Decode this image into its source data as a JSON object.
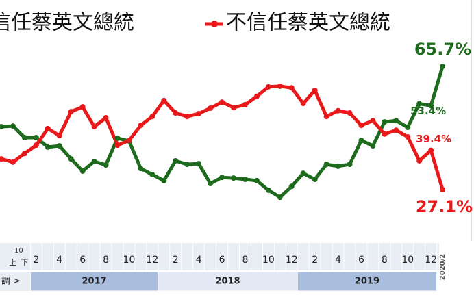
{
  "chart_data": {
    "type": "line",
    "categories": [
      null,
      "上",
      "下",
      "2",
      null,
      "4",
      null,
      "6",
      null,
      "8",
      null,
      "10",
      null,
      "12",
      null,
      "2",
      null,
      "4",
      null,
      "6",
      null,
      "8",
      null,
      "10",
      null,
      "12",
      null,
      "2",
      null,
      "4",
      null,
      "6",
      null,
      "8",
      null,
      "10",
      null,
      "12",
      "2020/2"
    ],
    "category_group_label": "10",
    "years": [
      "2017",
      "2018",
      "2019"
    ],
    "row_label": "調 >",
    "ylim": [
      11,
      86.5
    ],
    "series": [
      {
        "name": "信任蔡英文總統",
        "color": "#1e6b1e",
        "values": [
          46.8,
          47.0,
          43.4,
          43.4,
          40.4,
          40.8,
          36.7,
          32.9,
          35.9,
          34.8,
          43.2,
          42.3,
          33.7,
          31.8,
          29.9,
          36.1,
          35.0,
          35.2,
          29.0,
          30.9,
          30.7,
          30.3,
          29.9,
          26.9,
          24.7,
          28.1,
          32.2,
          30.3,
          35.0,
          34.4,
          35.0,
          42.5,
          40.8,
          48.3,
          48.7,
          46.6,
          54.0,
          53.4,
          65.7
        ],
        "value_labels": [
          null,
          null,
          null,
          null,
          null,
          null,
          null,
          null,
          null,
          null,
          null,
          null,
          null,
          null,
          null,
          null,
          null,
          null,
          null,
          null,
          null,
          null,
          null,
          null,
          null,
          null,
          null,
          null,
          null,
          null,
          null,
          null,
          null,
          null,
          null,
          null,
          null,
          "53.4%",
          "65.7%"
        ]
      },
      {
        "name": "不信任蔡英文總統",
        "color": "#e8191b",
        "values": [
          36.7,
          35.7,
          38.4,
          41.0,
          46.2,
          44.0,
          51.5,
          53.0,
          46.8,
          49.6,
          41.0,
          42.5,
          47.2,
          50.0,
          55.0,
          51.1,
          50.0,
          50.9,
          52.6,
          54.5,
          52.8,
          53.7,
          56.3,
          59.3,
          59.5,
          59.0,
          54.1,
          58.2,
          50.0,
          51.8,
          51.1,
          47.2,
          48.7,
          44.5,
          45.7,
          43.6,
          36.1,
          39.4,
          27.1
        ],
        "value_labels": [
          null,
          null,
          null,
          null,
          null,
          null,
          null,
          null,
          null,
          null,
          null,
          null,
          null,
          null,
          null,
          null,
          null,
          null,
          null,
          null,
          null,
          null,
          null,
          null,
          null,
          null,
          null,
          null,
          null,
          null,
          null,
          null,
          null,
          null,
          null,
          null,
          null,
          "39.4%",
          "27.1%"
        ]
      }
    ]
  }
}
